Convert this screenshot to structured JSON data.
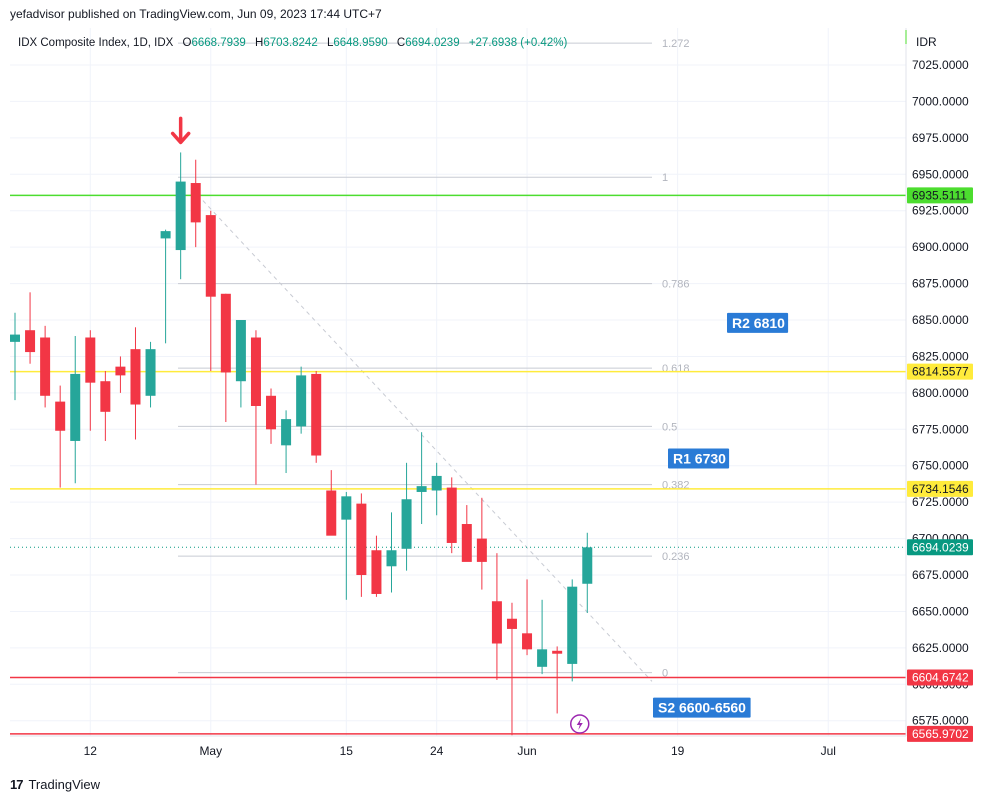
{
  "header": {
    "publisher": "yefadvisor published on TradingView.com, Jun 09, 2023 17:44 UTC+7"
  },
  "legend": {
    "symbol": "IDX Composite Index, 1D, IDX",
    "o_label": "O",
    "o": "6668.7939",
    "h_label": "H",
    "h": "6703.8242",
    "l_label": "L",
    "l": "6648.9590",
    "c_label": "C",
    "c": "6694.0239",
    "change": "+27.6938 (+0.42%)"
  },
  "footer": {
    "brand": "TradingView",
    "logo": "tradingview-logo-icon"
  },
  "colors": {
    "up": "#26a69a",
    "down": "#f23645",
    "green_line": "#4cdd2f",
    "yellow_line": "#ffeb3b",
    "red_line": "#f23645",
    "label_blue": "#2962ff",
    "fib_gray": "#b2b5be"
  },
  "chart_data": {
    "type": "candlestick",
    "currency": "IDR",
    "ylim": [
      6562,
      7037
    ],
    "y_ticks": [
      "7025.0000",
      "7000.0000",
      "6975.0000",
      "6950.0000",
      "6925.0000",
      "6900.0000",
      "6875.0000",
      "6850.0000",
      "6825.0000",
      "6800.0000",
      "6775.0000",
      "6750.0000",
      "6725.0000",
      "6700.0000",
      "6675.0000",
      "6650.0000",
      "6625.0000",
      "6600.0000",
      "6575.0000"
    ],
    "x_ticks": [
      {
        "label": "12",
        "bar": 5
      },
      {
        "label": "May",
        "bar": 13
      },
      {
        "label": "15",
        "bar": 22
      },
      {
        "label": "24",
        "bar": 28
      },
      {
        "label": "Jun",
        "bar": 34
      },
      {
        "label": "19",
        "bar": 44
      },
      {
        "label": "Jul",
        "bar": 54
      }
    ],
    "candles": [
      {
        "o": 6835,
        "h": 6855,
        "l": 6795,
        "c": 6840
      },
      {
        "o": 6843,
        "h": 6869,
        "l": 6820,
        "c": 6828
      },
      {
        "o": 6838,
        "h": 6846,
        "l": 6790,
        "c": 6798
      },
      {
        "o": 6794,
        "h": 6805,
        "l": 6735,
        "c": 6774
      },
      {
        "o": 6767,
        "h": 6839,
        "l": 6738,
        "c": 6813
      },
      {
        "o": 6838,
        "h": 6843,
        "l": 6774,
        "c": 6807
      },
      {
        "o": 6808,
        "h": 6815,
        "l": 6767,
        "c": 6787
      },
      {
        "o": 6818,
        "h": 6825,
        "l": 6800,
        "c": 6812
      },
      {
        "o": 6830,
        "h": 6845,
        "l": 6768,
        "c": 6792
      },
      {
        "o": 6798,
        "h": 6835,
        "l": 6790,
        "c": 6830
      },
      {
        "o": 6906,
        "h": 6912,
        "l": 6834,
        "c": 6911
      },
      {
        "o": 6898,
        "h": 6965,
        "l": 6878,
        "c": 6945
      },
      {
        "o": 6944,
        "h": 6960,
        "l": 6900,
        "c": 6917
      },
      {
        "o": 6922,
        "h": 6925,
        "l": 6815,
        "c": 6866
      },
      {
        "o": 6868,
        "h": 6868,
        "l": 6780,
        "c": 6814
      },
      {
        "o": 6808,
        "h": 6850,
        "l": 6790,
        "c": 6850
      },
      {
        "o": 6838,
        "h": 6843,
        "l": 6737,
        "c": 6791
      },
      {
        "o": 6798,
        "h": 6803,
        "l": 6765,
        "c": 6775
      },
      {
        "o": 6764,
        "h": 6788,
        "l": 6745,
        "c": 6782
      },
      {
        "o": 6777,
        "h": 6818,
        "l": 6772,
        "c": 6812
      },
      {
        "o": 6813,
        "h": 6815,
        "l": 6752,
        "c": 6757
      },
      {
        "o": 6733,
        "h": 6747,
        "l": 6705,
        "c": 6702
      },
      {
        "o": 6713,
        "h": 6732,
        "l": 6658,
        "c": 6729
      },
      {
        "o": 6724,
        "h": 6731,
        "l": 6660,
        "c": 6675
      },
      {
        "o": 6692,
        "h": 6702,
        "l": 6660,
        "c": 6662
      },
      {
        "o": 6681,
        "h": 6718,
        "l": 6663,
        "c": 6692
      },
      {
        "o": 6693,
        "h": 6752,
        "l": 6678,
        "c": 6727
      },
      {
        "o": 6732,
        "h": 6773,
        "l": 6710,
        "c": 6736
      },
      {
        "o": 6733,
        "h": 6752,
        "l": 6716,
        "c": 6743
      },
      {
        "o": 6735,
        "h": 6742,
        "l": 6690,
        "c": 6697
      },
      {
        "o": 6710,
        "h": 6723,
        "l": 6686,
        "c": 6684
      },
      {
        "o": 6700,
        "h": 6728,
        "l": 6665,
        "c": 6684
      },
      {
        "o": 6657,
        "h": 6690,
        "l": 6603,
        "c": 6628
      },
      {
        "o": 6645,
        "h": 6656,
        "l": 6565,
        "c": 6638
      },
      {
        "o": 6635,
        "h": 6672,
        "l": 6620,
        "c": 6624
      },
      {
        "o": 6612,
        "h": 6658,
        "l": 6607,
        "c": 6624
      },
      {
        "o": 6623,
        "h": 6626,
        "l": 6580,
        "c": 6621
      },
      {
        "o": 6614,
        "h": 6672,
        "l": 6602,
        "c": 6667
      },
      {
        "o": 6669,
        "h": 6704,
        "l": 6649,
        "c": 6694
      }
    ],
    "levels": [
      {
        "value": 6935.5111,
        "label": "6935.5111",
        "color": "#4cdd2f"
      },
      {
        "value": 6814.5577,
        "label": "6814.5577",
        "color": "#ffeb3b"
      },
      {
        "value": 6734.1546,
        "label": "6734.1546",
        "color": "#ffeb3b"
      },
      {
        "value": 6694.0239,
        "label": "6694.0239",
        "color": "#089981",
        "dotted": true
      },
      {
        "value": 6604.6742,
        "label": "6604.6742",
        "color": "#f23645"
      },
      {
        "value": 6565.9702,
        "label": "6565.9702",
        "color": "#f23645"
      }
    ],
    "fib": [
      {
        "ratio": "1.272",
        "value": 7040
      },
      {
        "ratio": "1",
        "value": 6948
      },
      {
        "ratio": "0.786",
        "value": 6875
      },
      {
        "ratio": "0.618",
        "value": 6817
      },
      {
        "ratio": "0.5",
        "value": 6777
      },
      {
        "ratio": "0.382",
        "value": 6737
      },
      {
        "ratio": "0.236",
        "value": 6688
      },
      {
        "ratio": "0",
        "value": 6608
      }
    ],
    "annotations": [
      {
        "text": "R2 6810",
        "value": 6848
      },
      {
        "text": "R1 6730",
        "value": 6755
      },
      {
        "text": "S2 6600-6560",
        "value": 6584
      }
    ]
  }
}
